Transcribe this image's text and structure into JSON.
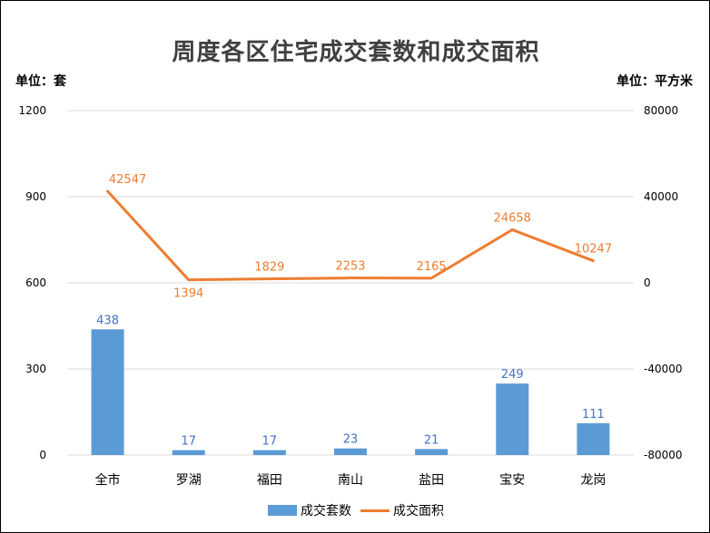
{
  "chart_data": {
    "type": "bar",
    "title": "周度各区住宅成交套数和成交面积",
    "y_unit_label": "单位：套",
    "y2_unit_label": "单位：平方米",
    "categories": [
      "全市",
      "罗湖",
      "福田",
      "南山",
      "盐田",
      "宝安",
      "龙岗"
    ],
    "series": [
      {
        "name": "成交套数",
        "type": "bar",
        "axis": "left",
        "color": "#5b9bd5",
        "label_color": "#4472c4",
        "values": [
          438,
          17,
          17,
          23,
          21,
          249,
          111
        ]
      },
      {
        "name": "成交面积",
        "type": "line",
        "axis": "right",
        "color": "#ed7d31",
        "values": [
          42547,
          1394,
          1829,
          2253,
          2165,
          24658,
          10247
        ]
      }
    ],
    "y_left": {
      "min": 0,
      "max": 1200,
      "ticks": [
        0,
        300,
        600,
        900,
        1200
      ]
    },
    "y_right": {
      "min": -80000,
      "max": 80000,
      "ticks": [
        -80000,
        -40000,
        0,
        40000,
        80000
      ]
    },
    "grid": true,
    "legend_position": "bottom"
  }
}
